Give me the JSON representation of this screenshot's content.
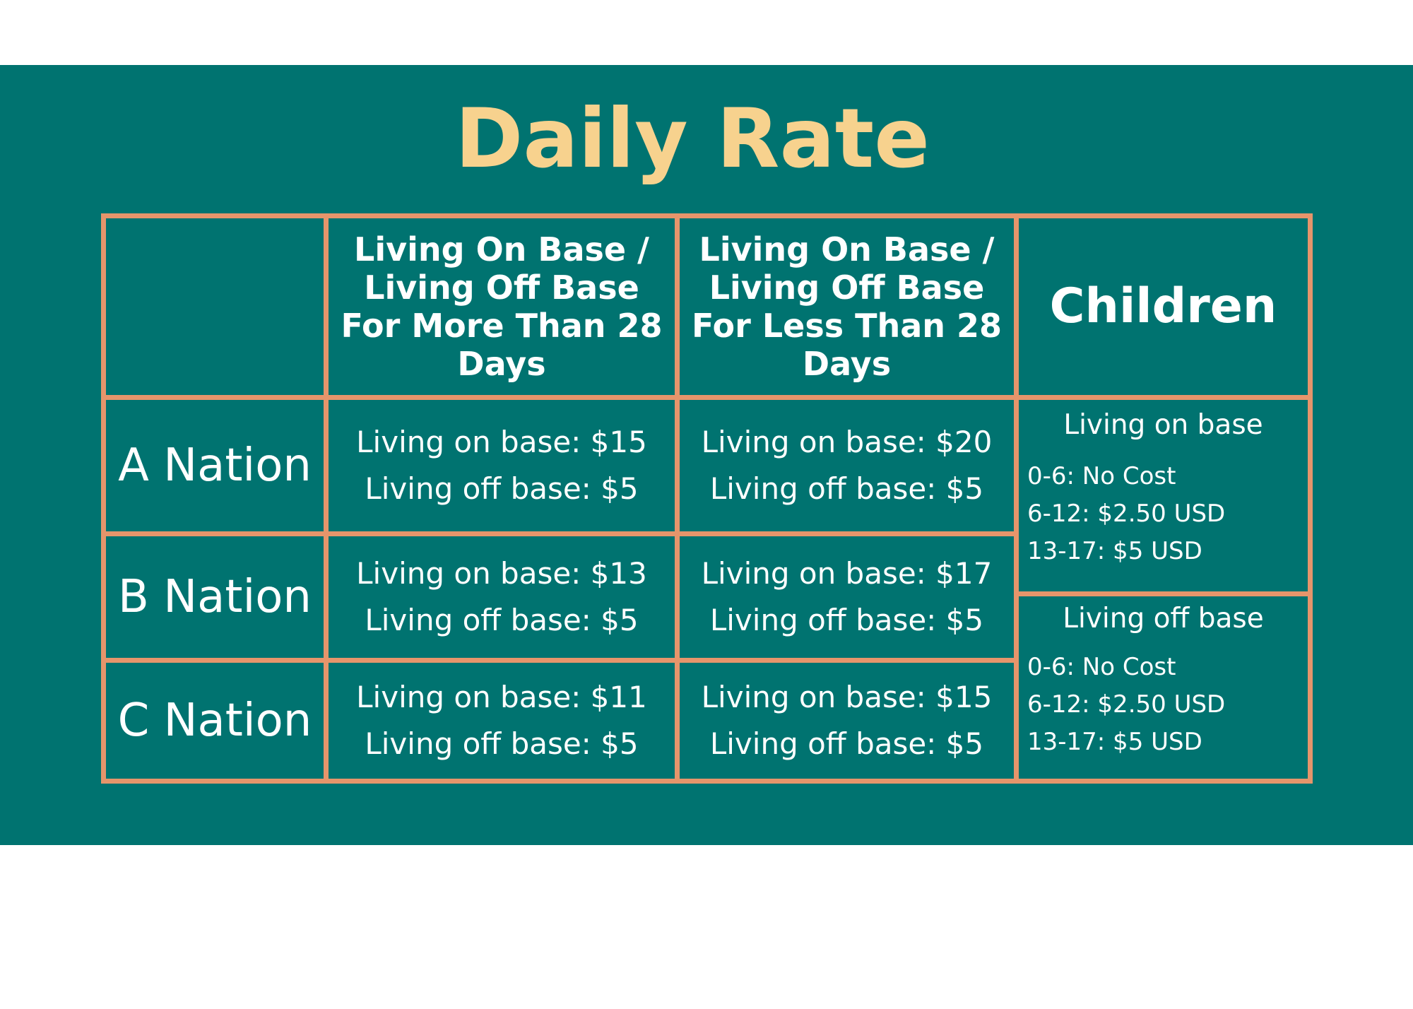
{
  "title": "Daily Rate",
  "headers": {
    "corner": "",
    "col1": [
      "Living On Base /",
      "Living Off Base",
      "For More Than 28",
      "Days"
    ],
    "col2": [
      "Living On Base /",
      "Living Off Base",
      "For Less Than 28",
      "Days"
    ],
    "col3": "Children"
  },
  "rows": [
    {
      "label": "A Nation",
      "col1": [
        "Living on base: $15",
        "Living off base: $5"
      ],
      "col2": [
        "Living on base: $20",
        "Living off base: $5"
      ]
    },
    {
      "label": "B Nation",
      "col1": [
        "Living on base: $13",
        "Living off base: $5"
      ],
      "col2": [
        "Living on base: $17",
        "Living off base: $5"
      ]
    },
    {
      "label": "C Nation",
      "col1": [
        "Living on base: $11",
        "Living off base: $5"
      ],
      "col2": [
        "Living on base: $15",
        "Living off base: $5"
      ]
    }
  ],
  "children": {
    "on_base": {
      "title": "Living on base",
      "lines": [
        "0-6: No Cost",
        "6-12: $2.50 USD",
        "13-17: $5 USD"
      ]
    },
    "off_base": {
      "title": "Living off base",
      "lines": [
        "0-6: No Cost",
        "6-12: $2.50 USD",
        "13-17: $5 USD"
      ]
    }
  },
  "colors": {
    "background": "#007370",
    "title": "#f7d28e",
    "border": "#e6956b",
    "text": "#ffffff"
  }
}
